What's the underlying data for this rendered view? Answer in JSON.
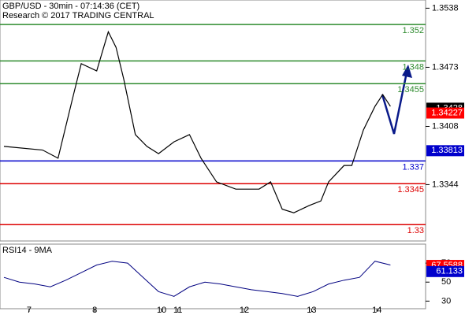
{
  "chart_data": {
    "type": "line",
    "title": "GBP/USD - 30min - 07:14:36 (CET)",
    "subtitle": "Research © 2017 TRADING CENTRAL",
    "xlim": [
      0,
      104
    ],
    "xticks": [
      {
        "value": 6.5,
        "label": "7"
      },
      {
        "value": 23.5,
        "label": "8"
      },
      {
        "value": 40.8,
        "label": "10"
      },
      {
        "value": 45,
        "label": "11"
      },
      {
        "value": 62.2,
        "label": "12"
      },
      {
        "value": 79.6,
        "label": "13"
      },
      {
        "value": 96.5,
        "label": "14"
      }
    ],
    "ylim": [
      1.3282,
      1.3547
    ],
    "yticks": [
      1.3538,
      1.3473,
      1.3408,
      1.3344
    ],
    "series": [
      {
        "color": "#000000",
        "x": [
          0,
          10,
          14,
          18,
          20,
          24,
          27,
          29,
          31,
          34,
          37,
          40,
          44,
          48,
          51,
          55,
          60,
          66,
          69,
          72,
          75,
          79,
          82,
          84,
          88,
          90,
          93,
          96,
          98,
          100
        ],
        "values": [
          1.3386,
          1.3382,
          1.3373,
          1.3443,
          1.3477,
          1.3469,
          1.3512,
          1.3495,
          1.346,
          1.3399,
          1.3386,
          1.3378,
          1.3391,
          1.3399,
          1.3373,
          1.3347,
          1.3339,
          1.3339,
          1.3347,
          1.3317,
          1.3313,
          1.3321,
          1.3326,
          1.3347,
          1.3365,
          1.3365,
          1.3404,
          1.343,
          1.3443,
          1.343
        ]
      }
    ],
    "levels": [
      {
        "value": 1.352,
        "color": "#2e8b2e"
      },
      {
        "value": 1.348,
        "color": "#2e8b2e"
      },
      {
        "value": 1.3455,
        "color": "#2e8b2e"
      },
      {
        "value": 1.337,
        "color": "#0000cc"
      },
      {
        "value": 1.3345,
        "color": "#dd0000"
      },
      {
        "value": 1.33,
        "color": "#dd0000"
      }
    ],
    "badges": [
      {
        "value": 1.3428,
        "color": "#000000"
      },
      {
        "value": 1.34227,
        "color": "#ff0000"
      },
      {
        "value": 1.33813,
        "color": "#0000cc"
      }
    ],
    "rsi": {
      "title": "RSI14 - 9MA",
      "ylim": [
        22,
        90
      ],
      "yticks": [
        30,
        50,
        70
      ],
      "color": "#000080",
      "x": [
        0,
        4,
        8,
        12,
        16,
        20,
        24,
        28,
        32,
        36,
        40,
        44,
        48,
        52,
        56,
        60,
        64,
        68,
        72,
        76,
        80,
        84,
        88,
        92,
        96,
        100
      ],
      "values": [
        55,
        50,
        48,
        45,
        52,
        60,
        68,
        72,
        70,
        55,
        40,
        35,
        45,
        50,
        48,
        45,
        42,
        40,
        38,
        35,
        40,
        48,
        52,
        55,
        72,
        68
      ],
      "badges": [
        {
          "value": 67.5588,
          "color": "#ff0000"
        },
        {
          "value": 61.133,
          "color": "#0000cc"
        }
      ]
    }
  }
}
